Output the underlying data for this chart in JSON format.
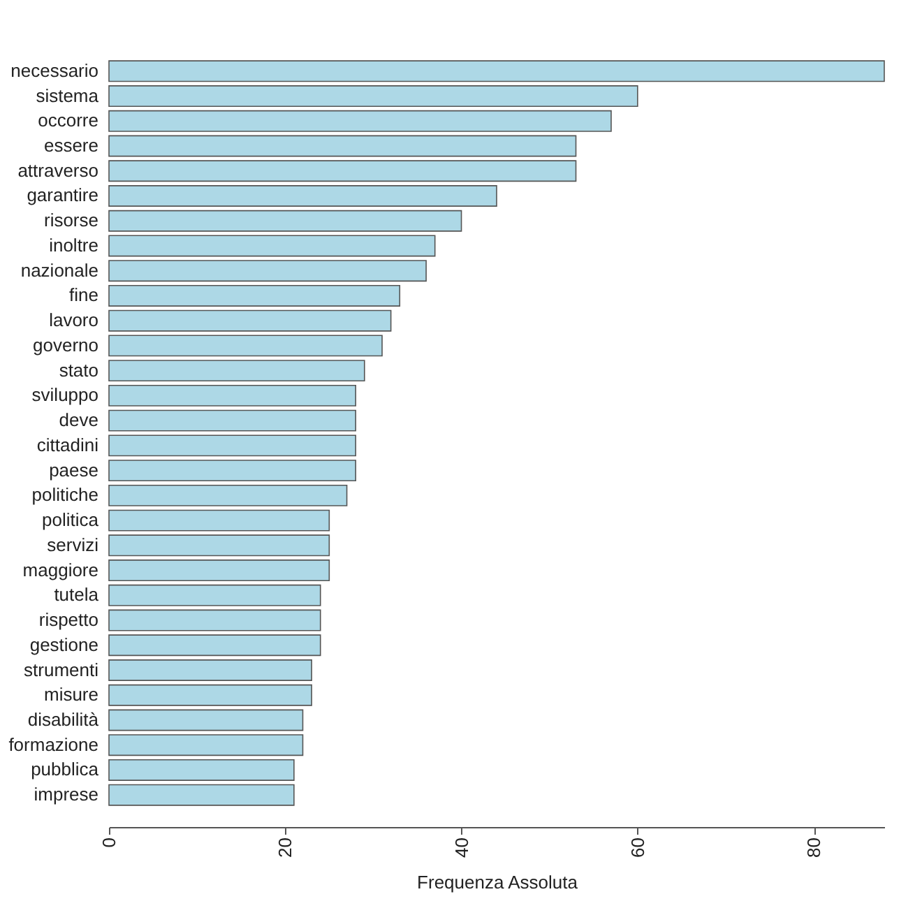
{
  "chart_data": {
    "type": "bar",
    "orientation": "horizontal",
    "xlabel": "Frequenza Assoluta",
    "color": "#add8e6",
    "categories": [
      "necessario",
      "sistema",
      "occorre",
      "essere",
      "attraverso",
      "garantire",
      "risorse",
      "inoltre",
      "nazionale",
      "fine",
      "lavoro",
      "governo",
      "stato",
      "sviluppo",
      "deve",
      "cittadini",
      "paese",
      "politiche",
      "politica",
      "servizi",
      "maggiore",
      "tutela",
      "rispetto",
      "gestione",
      "strumenti",
      "misure",
      "disabilità",
      "formazione",
      "pubblica",
      "imprese"
    ],
    "values": [
      88,
      60,
      57,
      53,
      53,
      44,
      40,
      37,
      36,
      33,
      32,
      31,
      29,
      28,
      28,
      28,
      28,
      27,
      25,
      25,
      25,
      24,
      24,
      24,
      23,
      23,
      22,
      22,
      21,
      21
    ],
    "xlim": [
      0,
      88
    ],
    "xticks": [
      0,
      20,
      40,
      60,
      80
    ],
    "grid": false
  }
}
